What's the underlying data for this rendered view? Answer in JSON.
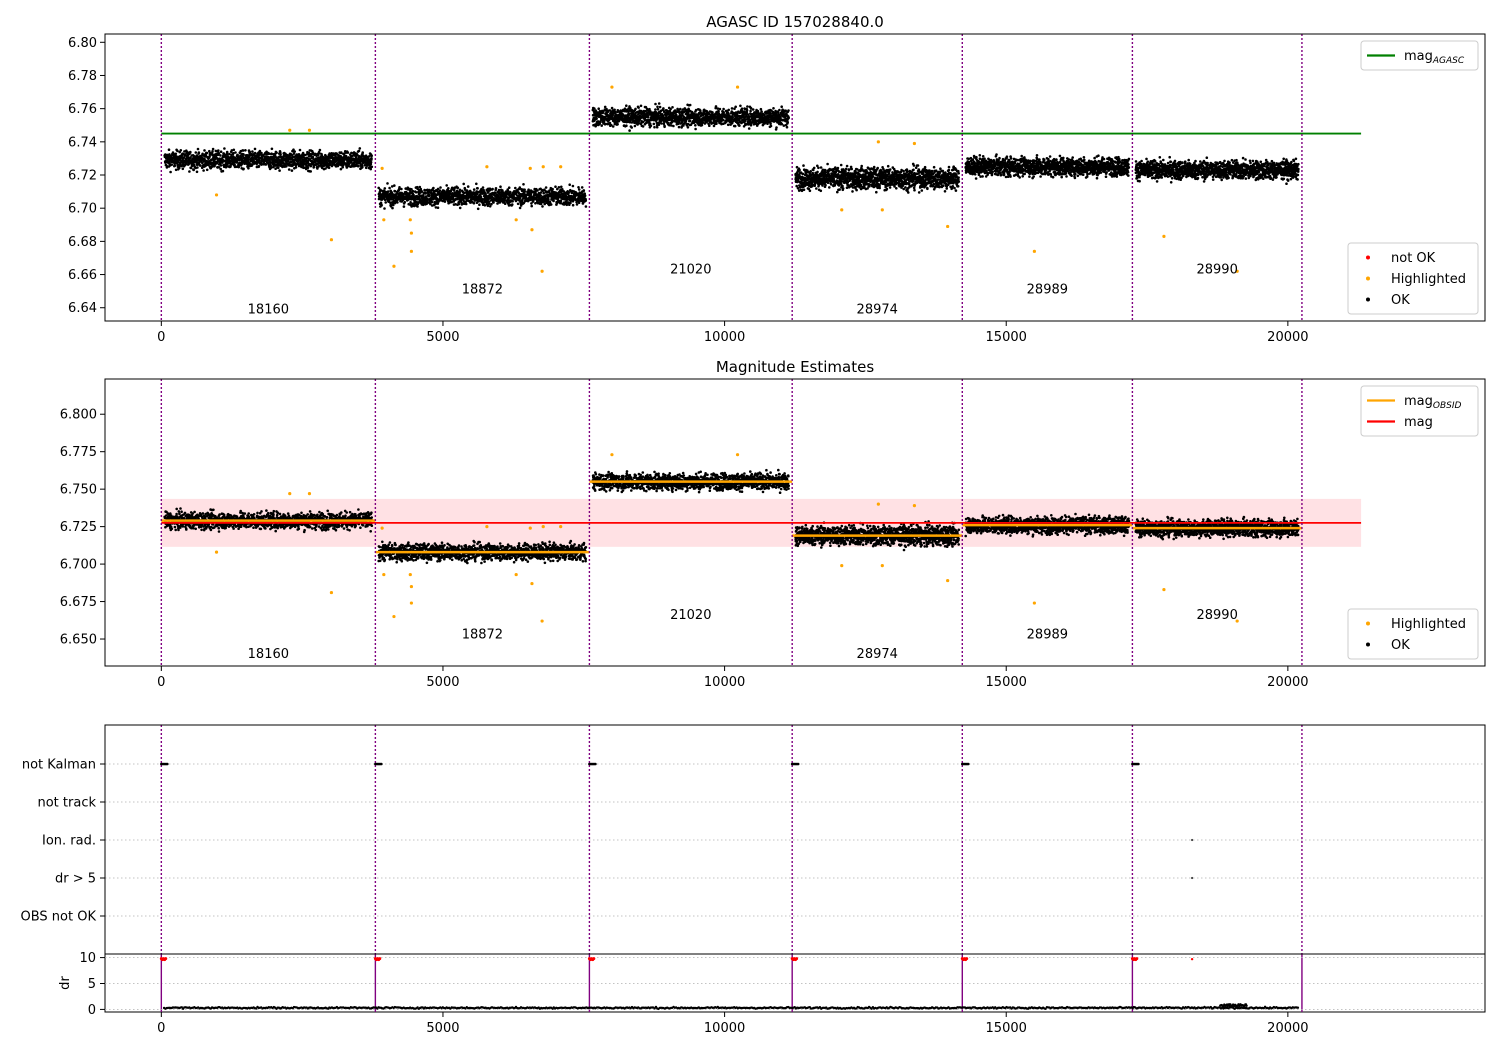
{
  "colors": {
    "ok": "#000000",
    "highlighted": "#ffa500",
    "not_ok": "#ff0000",
    "mag_agasc_line": "#008000",
    "mag_obsid_line": "#ffa500",
    "mag_line": "#ff0000",
    "mag_band": "#ffcdd2",
    "obsid_divider": "#800080",
    "grid": "#b0b0b0"
  },
  "chart_data": [
    {
      "type": "scatter",
      "title": "AGASC ID 157028840.0",
      "xlim": [
        -1000,
        23500
      ],
      "ylim": [
        6.632,
        6.805
      ],
      "xticks": [
        {
          "value": 0,
          "label": "0"
        },
        {
          "value": 5000,
          "label": "5000"
        },
        {
          "value": 10000,
          "label": "10000"
        },
        {
          "value": 15000,
          "label": "15000"
        },
        {
          "value": 20000,
          "label": "20000"
        }
      ],
      "yticks": [
        {
          "value": 6.64,
          "label": "6.64"
        },
        {
          "value": 6.66,
          "label": "6.66"
        },
        {
          "value": 6.68,
          "label": "6.68"
        },
        {
          "value": 6.7,
          "label": "6.70"
        },
        {
          "value": 6.72,
          "label": "6.72"
        },
        {
          "value": 6.74,
          "label": "6.74"
        },
        {
          "value": 6.76,
          "label": "6.76"
        },
        {
          "value": 6.78,
          "label": "6.78"
        },
        {
          "value": 6.8,
          "label": "6.80"
        }
      ],
      "obsid_boundaries": [
        0,
        3800,
        7600,
        11200,
        14220,
        17240,
        20250
      ],
      "obsids": [
        {
          "label": "18160",
          "x": 1900,
          "y": 6.639
        },
        {
          "label": "18872",
          "x": 5700,
          "y": 6.651
        },
        {
          "label": "21020",
          "x": 9400,
          "y": 6.663
        },
        {
          "label": "28974",
          "x": 12710,
          "y": 6.639
        },
        {
          "label": "28989",
          "x": 15730,
          "y": 6.651
        },
        {
          "label": "28990",
          "x": 18745,
          "y": 6.663
        }
      ],
      "segments": [
        {
          "x0": 0,
          "x1": 3800,
          "mean": 6.729,
          "spread": 0.006
        },
        {
          "x0": 3800,
          "x1": 7600,
          "mean": 6.707,
          "spread": 0.006
        },
        {
          "x0": 7600,
          "x1": 11200,
          "mean": 6.755,
          "spread": 0.006
        },
        {
          "x0": 11200,
          "x1": 14220,
          "mean": 6.718,
          "spread": 0.007
        },
        {
          "x0": 14220,
          "x1": 17240,
          "mean": 6.725,
          "spread": 0.006
        },
        {
          "x0": 17240,
          "x1": 20250,
          "mean": 6.723,
          "spread": 0.006
        }
      ],
      "highlighted_points": [
        {
          "x": 980,
          "y": 6.708
        },
        {
          "x": 2280,
          "y": 6.747
        },
        {
          "x": 2630,
          "y": 6.747
        },
        {
          "x": 3020,
          "y": 6.681
        },
        {
          "x": 3920,
          "y": 6.724
        },
        {
          "x": 3950,
          "y": 6.693
        },
        {
          "x": 4130,
          "y": 6.665
        },
        {
          "x": 4420,
          "y": 6.693
        },
        {
          "x": 4440,
          "y": 6.685
        },
        {
          "x": 4440,
          "y": 6.674
        },
        {
          "x": 5780,
          "y": 6.725
        },
        {
          "x": 6300,
          "y": 6.693
        },
        {
          "x": 6550,
          "y": 6.724
        },
        {
          "x": 6580,
          "y": 6.687
        },
        {
          "x": 6760,
          "y": 6.662
        },
        {
          "x": 6780,
          "y": 6.725
        },
        {
          "x": 7090,
          "y": 6.725
        },
        {
          "x": 8000,
          "y": 6.773
        },
        {
          "x": 10230,
          "y": 6.773
        },
        {
          "x": 12080,
          "y": 6.699
        },
        {
          "x": 12730,
          "y": 6.74
        },
        {
          "x": 12800,
          "y": 6.699
        },
        {
          "x": 13370,
          "y": 6.739
        },
        {
          "x": 13960,
          "y": 6.689
        },
        {
          "x": 15500,
          "y": 6.674
        },
        {
          "x": 17800,
          "y": 6.683
        },
        {
          "x": 19100,
          "y": 6.662
        }
      ],
      "lines": [
        {
          "name": "mag_AGASC",
          "y": 6.745,
          "x0": 0,
          "x1": 21300
        }
      ],
      "legends": [
        {
          "position": "top-right",
          "entries": [
            {
              "kind": "line",
              "label": "mag",
              "sub": "AGASC"
            }
          ]
        },
        {
          "position": "bottom-right",
          "entries": [
            {
              "kind": "dot",
              "label": "not OK"
            },
            {
              "kind": "dot",
              "label": "Highlighted"
            },
            {
              "kind": "dot",
              "label": "OK"
            }
          ]
        }
      ]
    },
    {
      "type": "scatter",
      "title": "Magnitude Estimates",
      "xlim": [
        -1000,
        23500
      ],
      "ylim": [
        6.632,
        6.8235
      ],
      "xticks": [
        {
          "value": 0,
          "label": "0"
        },
        {
          "value": 5000,
          "label": "5000"
        },
        {
          "value": 10000,
          "label": "10000"
        },
        {
          "value": 15000,
          "label": "15000"
        },
        {
          "value": 20000,
          "label": "20000"
        }
      ],
      "yticks": [
        {
          "value": 6.65,
          "label": "6.650"
        },
        {
          "value": 6.675,
          "label": "6.675"
        },
        {
          "value": 6.7,
          "label": "6.700"
        },
        {
          "value": 6.725,
          "label": "6.725"
        },
        {
          "value": 6.75,
          "label": "6.750"
        },
        {
          "value": 6.775,
          "label": "6.775"
        },
        {
          "value": 6.8,
          "label": "6.800"
        }
      ],
      "obsid_boundaries": [
        0,
        3800,
        7600,
        11200,
        14220,
        17240,
        20250
      ],
      "obsids": [
        {
          "label": "18160",
          "x": 1900,
          "y": 6.64
        },
        {
          "label": "18872",
          "x": 5700,
          "y": 6.653
        },
        {
          "label": "21020",
          "x": 9400,
          "y": 6.666
        },
        {
          "label": "28974",
          "x": 12710,
          "y": 6.64
        },
        {
          "label": "28989",
          "x": 15730,
          "y": 6.653
        },
        {
          "label": "28990",
          "x": 18745,
          "y": 6.666
        }
      ],
      "segments": [
        {
          "x0": 0,
          "x1": 3800,
          "mean": 6.729,
          "spread": 0.006
        },
        {
          "x0": 3800,
          "x1": 7600,
          "mean": 6.708,
          "spread": 0.006
        },
        {
          "x0": 7600,
          "x1": 11200,
          "mean": 6.755,
          "spread": 0.006
        },
        {
          "x0": 11200,
          "x1": 14220,
          "mean": 6.719,
          "spread": 0.007
        },
        {
          "x0": 14220,
          "x1": 17240,
          "mean": 6.726,
          "spread": 0.006
        },
        {
          "x0": 17240,
          "x1": 20250,
          "mean": 6.724,
          "spread": 0.006
        }
      ],
      "highlighted_points": [
        {
          "x": 980,
          "y": 6.708
        },
        {
          "x": 2280,
          "y": 6.747
        },
        {
          "x": 2630,
          "y": 6.747
        },
        {
          "x": 3020,
          "y": 6.681
        },
        {
          "x": 3920,
          "y": 6.724
        },
        {
          "x": 3950,
          "y": 6.693
        },
        {
          "x": 4130,
          "y": 6.665
        },
        {
          "x": 4420,
          "y": 6.693
        },
        {
          "x": 4440,
          "y": 6.685
        },
        {
          "x": 4440,
          "y": 6.674
        },
        {
          "x": 5780,
          "y": 6.725
        },
        {
          "x": 6300,
          "y": 6.693
        },
        {
          "x": 6550,
          "y": 6.724
        },
        {
          "x": 6580,
          "y": 6.687
        },
        {
          "x": 6760,
          "y": 6.662
        },
        {
          "x": 6780,
          "y": 6.725
        },
        {
          "x": 7090,
          "y": 6.725
        },
        {
          "x": 8000,
          "y": 6.773
        },
        {
          "x": 10230,
          "y": 6.773
        },
        {
          "x": 12080,
          "y": 6.699
        },
        {
          "x": 12730,
          "y": 6.74
        },
        {
          "x": 12800,
          "y": 6.699
        },
        {
          "x": 13370,
          "y": 6.739
        },
        {
          "x": 13960,
          "y": 6.689
        },
        {
          "x": 15500,
          "y": 6.674
        },
        {
          "x": 17800,
          "y": 6.683
        },
        {
          "x": 19100,
          "y": 6.662
        }
      ],
      "obsid_mags": [
        {
          "x0": 0,
          "x1": 3800,
          "y": 6.729
        },
        {
          "x0": 3800,
          "x1": 7600,
          "y": 6.708
        },
        {
          "x0": 7600,
          "x1": 11200,
          "y": 6.755
        },
        {
          "x0": 11200,
          "x1": 14220,
          "y": 6.719
        },
        {
          "x0": 14220,
          "x1": 17240,
          "y": 6.726
        },
        {
          "x0": 17240,
          "x1": 20250,
          "y": 6.724
        }
      ],
      "lines": [
        {
          "name": "mag",
          "y": 6.7275,
          "x0": 0,
          "x1": 21300
        }
      ],
      "band": {
        "y0": 6.7115,
        "y1": 6.7435,
        "x0": 0,
        "x1": 21300
      },
      "legends": [
        {
          "position": "top-right",
          "entries": [
            {
              "kind": "line",
              "label": "mag",
              "sub": "OBSID"
            },
            {
              "kind": "line",
              "label": "mag",
              "sub": ""
            }
          ]
        },
        {
          "position": "bottom-right",
          "entries": [
            {
              "kind": "dot",
              "label": "Highlighted"
            },
            {
              "kind": "dot",
              "label": "OK"
            }
          ]
        }
      ]
    },
    {
      "type": "scatter",
      "title": "",
      "xlim": [
        -1000,
        23500
      ],
      "categories": [
        "not Kalman",
        "not track",
        "Ion. rad.",
        "dr > 5",
        "OBS not OK"
      ],
      "obsid_boundaries": [
        0,
        3800,
        7600,
        11200,
        14220,
        17240,
        20250
      ],
      "flag_points": [
        {
          "category": "not Kalman",
          "x": [
            0,
            3800,
            7600,
            11200,
            14220,
            17240
          ]
        },
        {
          "category": "Ion. rad.",
          "x": [
            18300
          ]
        },
        {
          "category": "dr > 5",
          "x": [
            18300
          ]
        }
      ]
    },
    {
      "type": "scatter",
      "title": "",
      "ylabel": "dr",
      "xlim": [
        -1000,
        23500
      ],
      "ylim": [
        -0.5,
        10.5
      ],
      "yticks": [
        {
          "value": 0,
          "label": "0"
        },
        {
          "value": 5,
          "label": "5"
        },
        {
          "value": 10,
          "label": "10"
        }
      ],
      "xticks": [
        {
          "value": 0,
          "label": "0"
        },
        {
          "value": 5000,
          "label": "5000"
        },
        {
          "value": 10000,
          "label": "10000"
        },
        {
          "value": 15000,
          "label": "15000"
        },
        {
          "value": 20000,
          "label": "20000"
        }
      ],
      "obsid_boundaries": [
        0,
        3800,
        7600,
        11200,
        14220,
        17240,
        20250
      ],
      "dr_baseline": {
        "x0": 0,
        "x1": 20250,
        "mean": 0.3,
        "spread": 0.15
      },
      "dr_not_ok_points": [
        {
          "x": 0,
          "y": 9.8
        },
        {
          "x": 3800,
          "y": 9.8
        },
        {
          "x": 7600,
          "y": 9.8
        },
        {
          "x": 11200,
          "y": 9.8
        },
        {
          "x": 14220,
          "y": 9.8
        },
        {
          "x": 17240,
          "y": 9.8
        },
        {
          "x": 18300,
          "y": 9.7
        }
      ]
    }
  ]
}
